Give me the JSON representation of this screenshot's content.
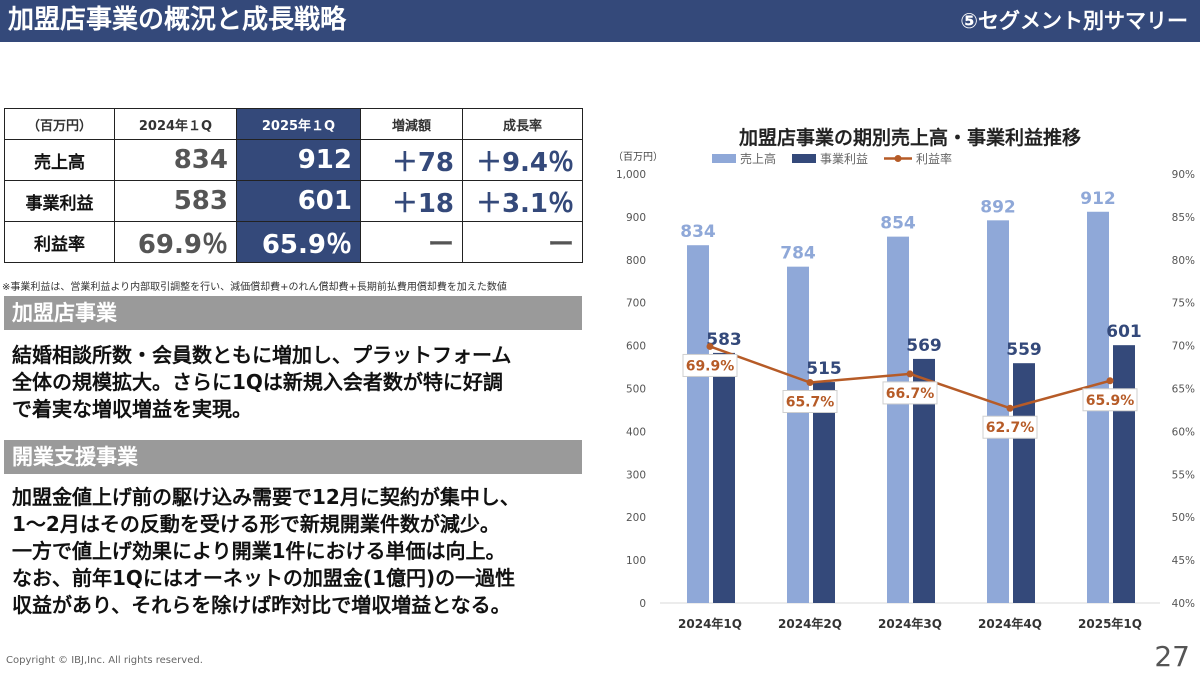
{
  "header": {
    "title": "加盟店事業の概況と成長戦略",
    "section": "⑤セグメント別サマリー"
  },
  "table": {
    "unit": "（百万円）",
    "columns": [
      "2024年１Q",
      "2025年１Q",
      "増減額",
      "成長率"
    ],
    "rows": [
      {
        "label": "売上高",
        "prev": "834",
        "curr": "912",
        "diff": "＋78",
        "rate": "＋9.4％"
      },
      {
        "label": "事業利益",
        "prev": "583",
        "curr": "601",
        "diff": "＋18",
        "rate": "＋3.1％"
      },
      {
        "label": "利益率",
        "prev": "69.9％",
        "curr": "65.9％",
        "diff": "ー",
        "rate": "ー"
      }
    ],
    "footnote": "※事業利益は、営業利益より内部取引調整を行い、減価償却費+のれん償却費+長期前払費用償却費を加えた数値"
  },
  "sections": [
    {
      "title": "加盟店事業",
      "lines": [
        "結婚相談所数・会員数ともに増加し、プラットフォーム",
        "全体の規模拡大。さらに1Qは新規入会者数が特に好調",
        "で着実な増収増益を実現。"
      ]
    },
    {
      "title": "開業支援事業",
      "lines": [
        "加盟金値上げ前の駆け込み需要で12月に契約が集中し、",
        "1～2月はその反動を受ける形で新規開業件数が減少。",
        "一方で値上げ効果により開業1件における単価は向上。",
        "なお、前年1Qにはオーネットの加盟金(1億円)の一過性",
        "収益があり、それらを除けば昨対比で増収増益となる。"
      ]
    }
  ],
  "footer": {
    "copyright": "Copyright © IBJ,Inc. All rights reserved.",
    "page": "27"
  },
  "chart_data": {
    "type": "bar",
    "title": "加盟店事業の期別売上高・事業利益推移",
    "ylabel": "（百万円）",
    "categories": [
      "2024年1Q",
      "2024年2Q",
      "2024年3Q",
      "2024年4Q",
      "2025年1Q"
    ],
    "ylim": [
      0,
      1000
    ],
    "yticks": [
      0,
      100,
      200,
      300,
      400,
      500,
      600,
      700,
      800,
      900,
      1000
    ],
    "ytick_labels": [
      "0",
      "100",
      "200",
      "300",
      "400",
      "500",
      "600",
      "700",
      "800",
      "900",
      "1,000"
    ],
    "y2lim": [
      40,
      90
    ],
    "y2ticks": [
      40,
      45,
      50,
      55,
      60,
      65,
      70,
      75,
      80,
      85,
      90
    ],
    "y2tick_labels": [
      "40%",
      "45%",
      "50%",
      "55%",
      "60%",
      "65%",
      "70%",
      "75%",
      "80%",
      "85%",
      "90%"
    ],
    "legend_position": "top",
    "series": [
      {
        "name": "売上高",
        "kind": "bar",
        "color": "#8fa8d8",
        "label_color": "#8fa8d8",
        "values": [
          834,
          784,
          854,
          892,
          912
        ]
      },
      {
        "name": "事業利益",
        "kind": "bar",
        "color": "#34497a",
        "label_color": "#34497a",
        "values": [
          583,
          515,
          569,
          559,
          601
        ]
      },
      {
        "name": "利益率",
        "kind": "line",
        "axis": "y2",
        "color": "#b65b27",
        "values": [
          69.9,
          65.7,
          66.7,
          62.7,
          65.9
        ],
        "labels": [
          "69.9%",
          "65.7%",
          "66.7%",
          "62.7%",
          "65.9%"
        ]
      }
    ]
  }
}
